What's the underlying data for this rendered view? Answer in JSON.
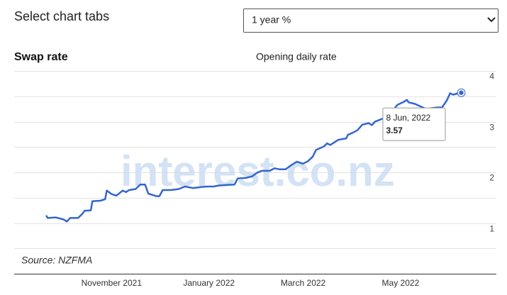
{
  "header": {
    "title": "Select chart tabs",
    "select": "1 year %"
  },
  "chart_data": {
    "type": "line",
    "title": "Swap rate",
    "subtitle": "Opening daily rate",
    "source": "Source: NZFMA",
    "watermark": "interest.co.nz",
    "color": "#3366cc",
    "grid": true,
    "y_axis_side": "right",
    "x": [
      "2021-09-21",
      "2021-09-22",
      "2021-09-27",
      "2021-10-02",
      "2021-10-04",
      "2021-10-06",
      "2021-10-11",
      "2021-10-14",
      "2021-10-15",
      "2021-10-19",
      "2021-10-20",
      "2021-10-25",
      "2021-10-28",
      "2021-10-29",
      "2021-11-01",
      "2021-11-04",
      "2021-11-08",
      "2021-11-10",
      "2021-11-12",
      "2021-11-16",
      "2021-11-19",
      "2021-11-22",
      "2021-11-24",
      "2021-11-29",
      "2021-12-01",
      "2021-12-03",
      "2021-12-08",
      "2021-12-13",
      "2021-12-17",
      "2021-12-22",
      "2021-12-27",
      "2021-12-31",
      "2022-01-04",
      "2022-01-07",
      "2022-01-12",
      "2022-01-17",
      "2022-01-19",
      "2022-01-24",
      "2022-01-28",
      "2022-01-31",
      "2022-02-03",
      "2022-02-08",
      "2022-02-11",
      "2022-02-14",
      "2022-02-18",
      "2022-02-21",
      "2022-02-25",
      "2022-03-01",
      "2022-03-04",
      "2022-03-07",
      "2022-03-09",
      "2022-03-14",
      "2022-03-16",
      "2022-03-18",
      "2022-03-23",
      "2022-03-28",
      "2022-03-29",
      "2022-04-01",
      "2022-04-04",
      "2022-04-07",
      "2022-04-11",
      "2022-04-13",
      "2022-04-15",
      "2022-04-20",
      "2022-04-22",
      "2022-04-27",
      "2022-04-29",
      "2022-05-03",
      "2022-05-05",
      "2022-05-06",
      "2022-05-10",
      "2022-05-17",
      "2022-05-24",
      "2022-05-27",
      "2022-05-30",
      "2022-06-01",
      "2022-06-03",
      "2022-06-06",
      "2022-06-08"
    ],
    "values": [
      1.15,
      1.1,
      1.11,
      1.07,
      1.03,
      1.1,
      1.1,
      1.19,
      1.24,
      1.25,
      1.43,
      1.44,
      1.47,
      1.64,
      1.57,
      1.54,
      1.64,
      1.61,
      1.65,
      1.67,
      1.76,
      1.76,
      1.58,
      1.53,
      1.53,
      1.65,
      1.65,
      1.67,
      1.72,
      1.69,
      1.71,
      1.72,
      1.72,
      1.74,
      1.75,
      1.76,
      1.88,
      1.89,
      1.92,
      1.99,
      2.03,
      2.03,
      2.08,
      2.06,
      2.06,
      2.13,
      2.21,
      2.17,
      2.22,
      2.31,
      2.44,
      2.51,
      2.57,
      2.54,
      2.64,
      2.67,
      2.74,
      2.78,
      2.83,
      2.94,
      2.97,
      2.93,
      3.0,
      3.06,
      3.17,
      3.25,
      3.33,
      3.39,
      3.43,
      3.38,
      3.35,
      3.25,
      3.28,
      3.28,
      3.42,
      3.56,
      3.53,
      3.56,
      3.57
    ],
    "xlim": [
      "2021-09-01",
      "2022-06-30"
    ],
    "xticks": [
      {
        "value": "2021-11-01",
        "label": "November 2021"
      },
      {
        "value": "2022-01-01",
        "label": "January 2022"
      },
      {
        "value": "2022-03-01",
        "label": "March 2022"
      },
      {
        "value": "2022-05-01",
        "label": "May 2022"
      }
    ],
    "ylim": [
      0,
      4
    ],
    "yticks": [
      1,
      2,
      3,
      4
    ],
    "minor_yticks": [
      0.5,
      1.5,
      2.5,
      3.5
    ],
    "tooltip": {
      "x": "8 Jun, 2022",
      "value": "3.57"
    }
  }
}
